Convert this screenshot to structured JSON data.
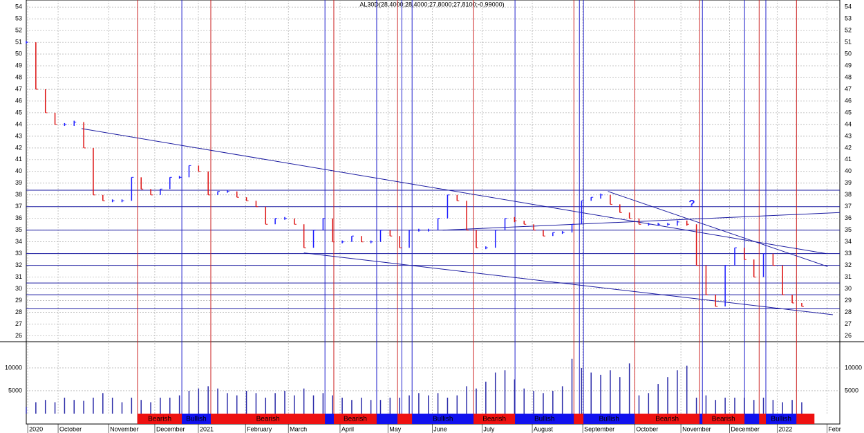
{
  "chart_data": {
    "type": "bar",
    "title": "AL30D(28,4000;28,4000;27,8000;27,8100;-0,99000)",
    "annotation": "?",
    "x": [
      0,
      4,
      8,
      12,
      16,
      20,
      24,
      28,
      32,
      36,
      40,
      44,
      48,
      52,
      56,
      60,
      64,
      68,
      72,
      76,
      80,
      84,
      88,
      92,
      96,
      100,
      104,
      108,
      112,
      116,
      120,
      124,
      128,
      132,
      136,
      140,
      144,
      148,
      152,
      156,
      160,
      164,
      168,
      172,
      176,
      180,
      184,
      188,
      192,
      196,
      200,
      204,
      208,
      212,
      216,
      220,
      224,
      228,
      232,
      236,
      240,
      244,
      248,
      252,
      256,
      260,
      264,
      268,
      272,
      276,
      280,
      284,
      288,
      292,
      296,
      300,
      304,
      308,
      312,
      316,
      320,
      324
    ],
    "values": [
      51,
      47,
      45,
      44,
      44,
      44.2,
      42,
      38,
      37.5,
      37.5,
      37.5,
      39.5,
      38.5,
      38,
      38.5,
      39.5,
      39.5,
      40.5,
      40,
      38,
      38.3,
      38.3,
      37.8,
      37.5,
      37,
      35.5,
      36,
      36,
      35.5,
      33.5,
      35,
      36,
      34,
      34,
      34.5,
      34,
      34,
      35,
      34.5,
      33.5,
      35,
      35,
      35,
      36,
      38,
      37.5,
      35,
      33.5,
      33.5,
      35,
      36,
      35.8,
      35.5,
      35,
      34.5,
      34.8,
      34.8,
      35.5,
      37.5,
      37.8,
      38,
      37.2,
      36.5,
      36,
      35.5,
      35.5,
      35.5,
      35.5,
      35.7,
      35.5,
      32,
      29.5,
      28.5,
      32,
      33.5,
      32.5,
      31,
      33,
      32,
      29.5,
      28.8,
      28.5
    ],
    "volume": [
      1500,
      2500,
      3000,
      2500,
      3500,
      3000,
      2800,
      3500,
      4500,
      3500,
      2500,
      3500,
      3000,
      2500,
      3500,
      3500,
      4000,
      5000,
      5500,
      6000,
      5500,
      4500,
      4000,
      5000,
      4500,
      3500,
      4500,
      5000,
      4000,
      5500,
      4000,
      4500,
      4000,
      3500,
      3000,
      3500,
      3000,
      3000,
      3500,
      3500,
      4000,
      4500,
      4000,
      4500,
      3500,
      4000,
      6000,
      5500,
      7000,
      9000,
      9500,
      7500,
      5500,
      5000,
      4500,
      5000,
      6000,
      12000,
      10000,
      9000,
      8500,
      9500,
      8000,
      11000,
      4000,
      4500,
      6500,
      8000,
      9500,
      10500,
      3500,
      4000,
      3000,
      3500,
      3500,
      3500,
      3000,
      3500,
      3000,
      2500,
      3000,
      2500
    ],
    "up_color": "#1a1aff",
    "down_color": "#dd1111",
    "volume_color": "#2a2aa8",
    "xlim": [
      0,
      339.9
    ],
    "xticks": [
      {
        "value": 0.6,
        "label": "2020"
      },
      {
        "value": 13.3,
        "label": "October"
      },
      {
        "value": 34.4,
        "label": "November"
      },
      {
        "value": 53.7,
        "label": "December"
      },
      {
        "value": 71.9,
        "label": "2021"
      },
      {
        "value": 91.6,
        "label": "February"
      },
      {
        "value": 109.5,
        "label": "March"
      },
      {
        "value": 131.1,
        "label": "April"
      },
      {
        "value": 151.1,
        "label": "May"
      },
      {
        "value": 169.6,
        "label": "June"
      },
      {
        "value": 190.4,
        "label": "July"
      },
      {
        "value": 211.4,
        "label": "August"
      },
      {
        "value": 232.5,
        "label": "September"
      },
      {
        "value": 254.2,
        "label": "October"
      },
      {
        "value": 273.5,
        "label": "November"
      },
      {
        "value": 293.8,
        "label": "December"
      },
      {
        "value": 313.7,
        "label": "2022"
      },
      {
        "value": 334.5,
        "label": "Febr"
      }
    ],
    "ylim": [
      25.5,
      54.6
    ],
    "yticks": [
      26,
      27,
      28,
      29,
      30,
      31,
      32,
      33,
      34,
      35,
      36,
      37,
      38,
      39,
      40,
      41,
      42,
      43,
      44,
      45,
      46,
      47,
      48,
      49,
      50,
      51,
      52,
      53,
      54
    ],
    "volume_ylim": [
      0,
      15750
    ],
    "volume_yticks": [
      5000,
      10000
    ],
    "grid": true,
    "levels": [
      38.4,
      37,
      35,
      33,
      32,
      30.5,
      29.5,
      28.3
    ],
    "trendlines": [
      [
        23.1,
        43.65,
        334.2,
        33.0
      ],
      [
        116,
        33.06,
        337,
        27.8
      ],
      [
        174,
        35,
        340,
        36.5
      ],
      [
        243,
        38.3,
        334.8,
        31.9
      ]
    ],
    "red_lines": [
      46.5,
      77.1,
      128.5,
      155.1,
      186.9,
      228.8,
      254.2,
      281.3,
      306.2,
      321.8
    ],
    "blue_lines": [
      65.0,
      124.8,
      146.4,
      156.9,
      161.2,
      204.2,
      231.1,
      232.8,
      282.5,
      300.1,
      309.0
    ],
    "signals": [
      {
        "start": 46.5,
        "end": 65.0,
        "color": "#ee1111",
        "label": "Bearish"
      },
      {
        "start": 65.0,
        "end": 77.1,
        "color": "#1111ee",
        "label": "Bullish"
      },
      {
        "start": 77.1,
        "end": 124.8,
        "color": "#ee1111",
        "label": "Bearish"
      },
      {
        "start": 124.8,
        "end": 128.5,
        "color": "#1111ee"
      },
      {
        "start": 128.5,
        "end": 146.4,
        "color": "#ee1111",
        "label": "Bearish"
      },
      {
        "start": 146.4,
        "end": 155.1,
        "color": "#1111ee"
      },
      {
        "start": 155.1,
        "end": 161.2,
        "color": "#ee1111"
      },
      {
        "start": 161.2,
        "end": 186.9,
        "color": "#1111ee",
        "label": "Bullish"
      },
      {
        "start": 186.9,
        "end": 204.2,
        "color": "#ee1111",
        "label": "Bearish"
      },
      {
        "start": 204.2,
        "end": 228.8,
        "color": "#1111ee",
        "label": "Bullish"
      },
      {
        "start": 228.8,
        "end": 232.8,
        "color": "#ee1111"
      },
      {
        "start": 232.8,
        "end": 254.2,
        "color": "#1111ee",
        "label": "Bullish"
      },
      {
        "start": 254.2,
        "end": 281.3,
        "color": "#ee1111",
        "label": "Bearish"
      },
      {
        "start": 281.3,
        "end": 282.5,
        "color": "#1111ee"
      },
      {
        "start": 282.5,
        "end": 300.1,
        "color": "#ee1111",
        "label": "Bearish"
      },
      {
        "start": 300.1,
        "end": 306.2,
        "color": "#1111ee"
      },
      {
        "start": 306.2,
        "end": 309.0,
        "color": "#ee1111"
      },
      {
        "start": 309.0,
        "end": 321.8,
        "color": "#1111ee",
        "label": "Bullish"
      },
      {
        "start": 321.8,
        "end": 329.3,
        "color": "#ee1111"
      }
    ]
  }
}
